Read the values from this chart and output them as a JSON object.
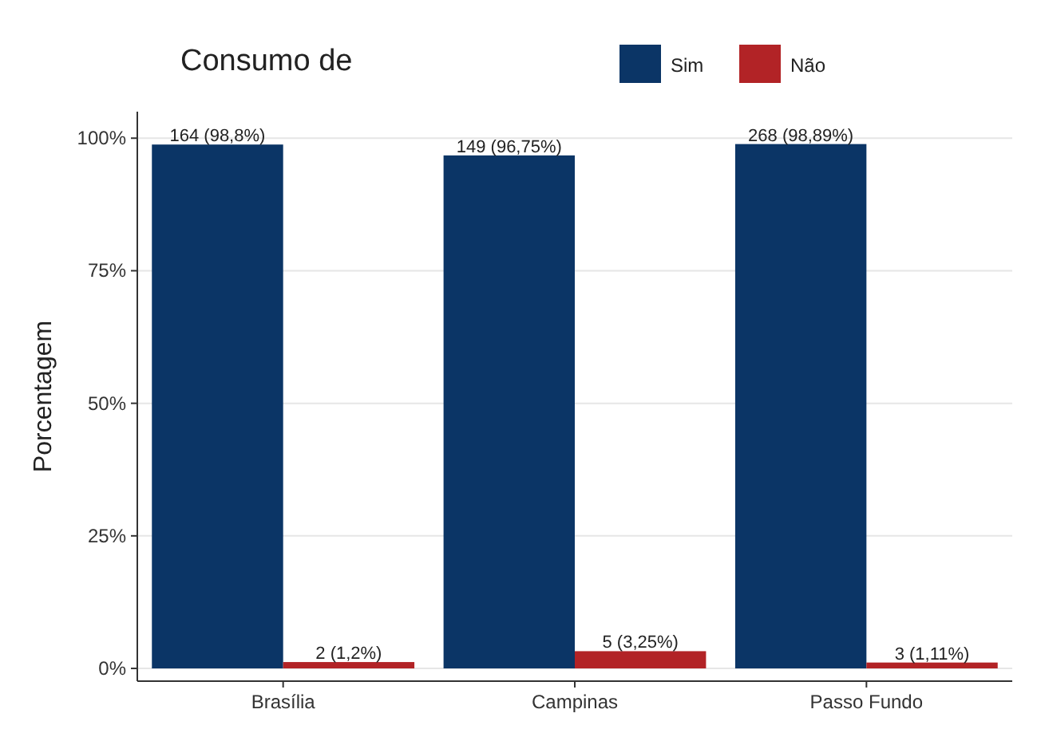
{
  "chart_data": {
    "type": "bar",
    "legend_title": "Consumo de",
    "ylabel": "Porcentagem",
    "categories": [
      "Brasília",
      "Campinas",
      "Passo Fundo"
    ],
    "series": [
      {
        "name": "Sim",
        "color": "#0b3566",
        "values": [
          98.8,
          96.75,
          98.89
        ],
        "value_labels": [
          "164 (98,8%)",
          "149 (96,75%)",
          "268 (98,89%)"
        ]
      },
      {
        "name": "Não",
        "color": "#b22326",
        "values": [
          1.2,
          3.25,
          1.11
        ],
        "value_labels": [
          "2 (1,2%)",
          "5 (3,25%)",
          "3 (1,11%)"
        ]
      }
    ],
    "ylim": [
      -2.4,
      105
    ],
    "yticks": [
      {
        "value": 0,
        "label": "0%"
      },
      {
        "value": 25,
        "label": "25%"
      },
      {
        "value": 50,
        "label": "50%"
      },
      {
        "value": 75,
        "label": "75%"
      },
      {
        "value": 100,
        "label": "100%"
      }
    ],
    "grid": "y",
    "legend": "top"
  }
}
